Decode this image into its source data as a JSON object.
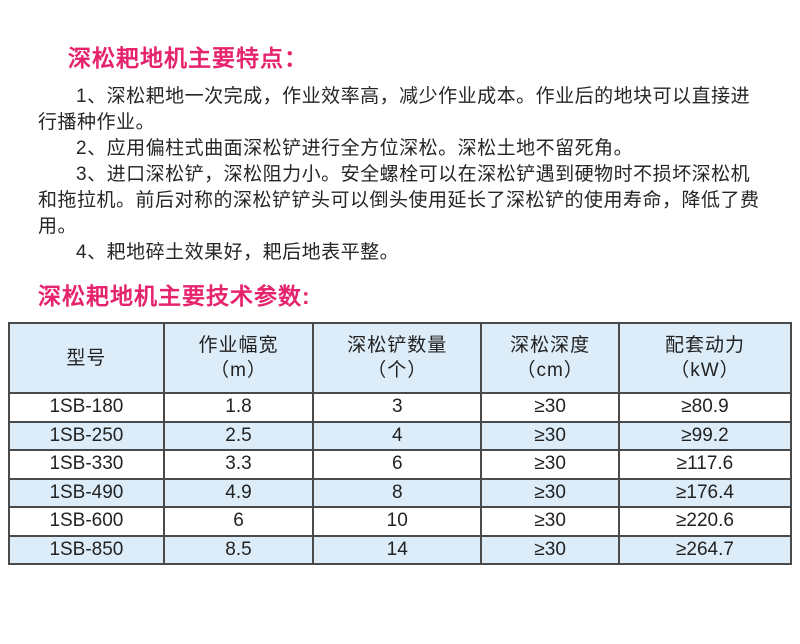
{
  "page": {
    "background": "#ffffff",
    "accent_color": "#e6246e",
    "text_color": "#262626",
    "table_border_color": "#4a4a4a",
    "table_stripe_color": "#dcedf9"
  },
  "features_section": {
    "heading": "深松耙地机主要特点：",
    "paragraphs": [
      "1、深松耙地一次完成，作业效率高，减少作业成本。作业后的地块可以直接进行播种作业。",
      "2、应用偏柱式曲面深松铲进行全方位深松。深松土地不留死角。",
      "3、进口深松铲，深松阻力小。安全螺栓可以在深松铲遇到硬物时不损坏深松机和拖拉机。前后对称的深松铲铲头可以倒头使用延长了深松铲的使用寿命，降低了费用。",
      "4、耙地碎土效果好，耙后地表平整。"
    ]
  },
  "specs_section": {
    "heading": "深松耙地机主要技术参数:",
    "table": {
      "columns": [
        {
          "label": "型号",
          "unit": ""
        },
        {
          "label": "作业幅宽",
          "unit": "（m）"
        },
        {
          "label": "深松铲数量",
          "unit": "（个）"
        },
        {
          "label": "深松深度",
          "unit": "（cm）"
        },
        {
          "label": "配套动力",
          "unit": "（kW）"
        }
      ],
      "rows": [
        [
          "1SB-180",
          "1.8",
          "3",
          "≥30",
          "≥80.9"
        ],
        [
          "1SB-250",
          "2.5",
          "4",
          "≥30",
          "≥99.2"
        ],
        [
          "1SB-330",
          "3.3",
          "6",
          "≥30",
          "≥117.6"
        ],
        [
          "1SB-490",
          "4.9",
          "8",
          "≥30",
          "≥176.4"
        ],
        [
          "1SB-600",
          "6",
          "10",
          "≥30",
          "≥220.6"
        ],
        [
          "1SB-850",
          "8.5",
          "14",
          "≥30",
          "≥264.7"
        ]
      ]
    }
  }
}
